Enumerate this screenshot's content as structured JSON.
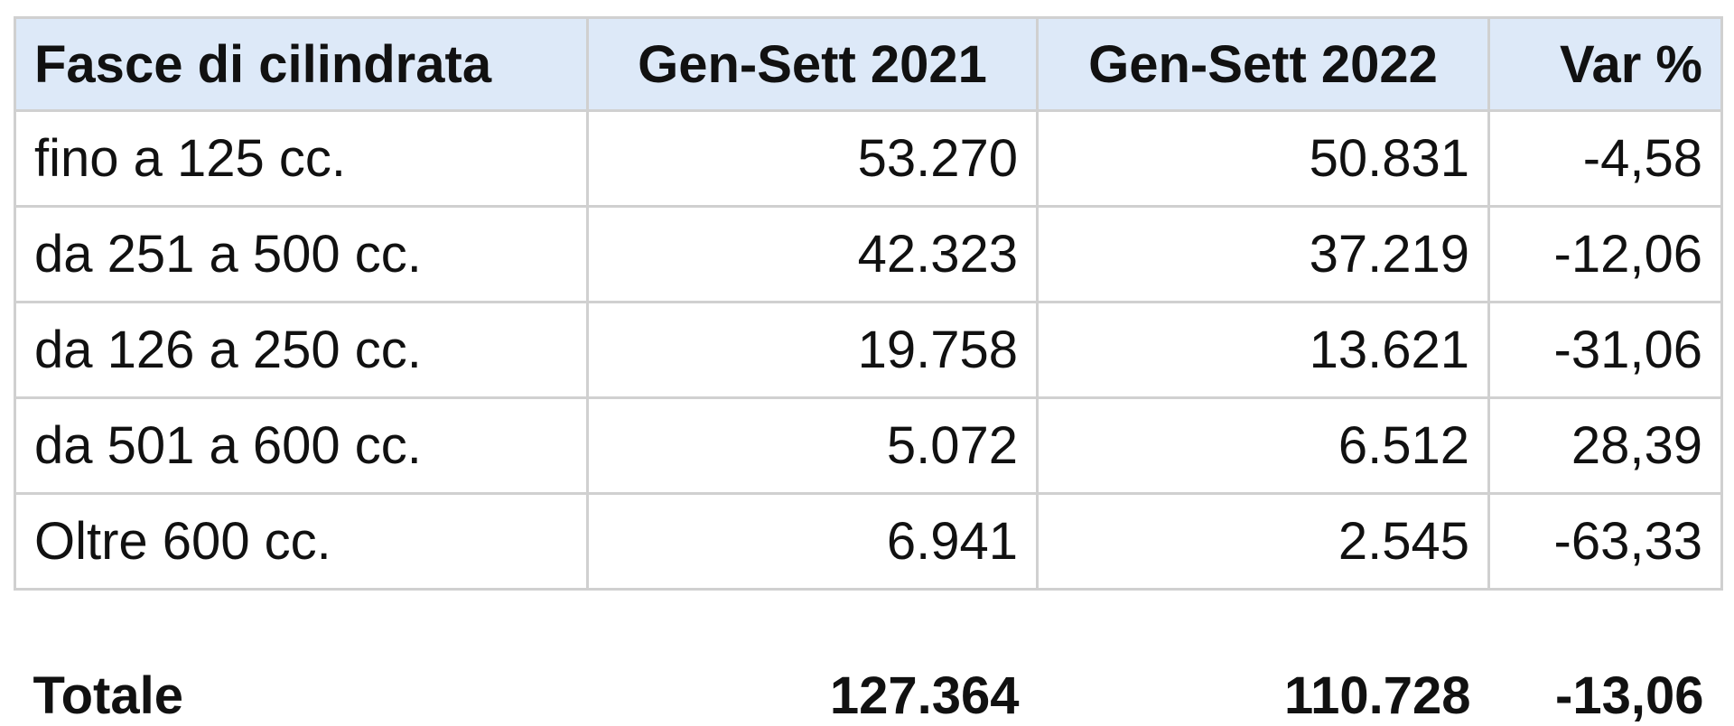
{
  "table": {
    "header": [
      "Fasce di cilindrata",
      "Gen-Sett 2021",
      "Gen-Sett 2022",
      "Var %"
    ],
    "rows": [
      [
        "fino a 125 cc.",
        "53.270",
        "50.831",
        "-4,58"
      ],
      [
        "da 251 a 500 cc.",
        "42.323",
        "37.219",
        "-12,06"
      ],
      [
        "da 126 a 250 cc.",
        "19.758",
        "13.621",
        "-31,06"
      ],
      [
        "da 501 a 600 cc.",
        "5.072",
        "6.512",
        "28,39"
      ],
      [
        "Oltre 600 cc.",
        "6.941",
        "2.545",
        "-63,33"
      ]
    ],
    "total": [
      "Totale",
      "127.364",
      "110.728",
      "-13,06"
    ]
  }
}
